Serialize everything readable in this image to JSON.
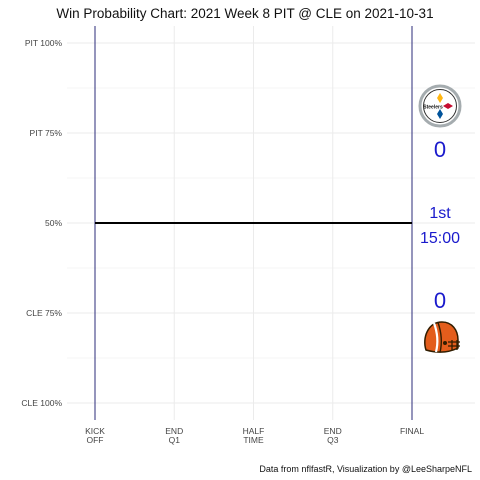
{
  "chart_data": {
    "type": "line",
    "title": "Win Probability Chart: 2021 Week 8 PIT @ CLE on 2021-10-31",
    "y_ticks": [
      "PIT 100%",
      "PIT 75%",
      "50%",
      "CLE 75%",
      "CLE 100%"
    ],
    "x_ticks": [
      {
        "line1": "KICK",
        "line2": "OFF"
      },
      {
        "line1": "END",
        "line2": "Q1"
      },
      {
        "line1": "HALF",
        "line2": "TIME"
      },
      {
        "line1": "END",
        "line2": "Q3"
      },
      {
        "line1": "FINAL",
        "line2": ""
      }
    ],
    "ylim": [
      0,
      1
    ],
    "grid": true,
    "series": [
      {
        "x": [
          0,
          1
        ],
        "y": [
          0.5,
          0.5
        ],
        "color": "#000000"
      }
    ],
    "scores": {
      "away": {
        "team": "PIT",
        "score": "0",
        "logo": "steelers-logo"
      },
      "home": {
        "team": "CLE",
        "score": "0",
        "logo": "browns-helmet-logo"
      }
    },
    "game_clock": {
      "quarter": "1st",
      "time": "15:00"
    },
    "caption": "Data from nflfastR, Visualization by @LeeSharpeNFL",
    "colors": {
      "text_accent": "#1a1acc",
      "boundary_lines": "#2b2b7a",
      "grid": "#ebebeb"
    }
  }
}
